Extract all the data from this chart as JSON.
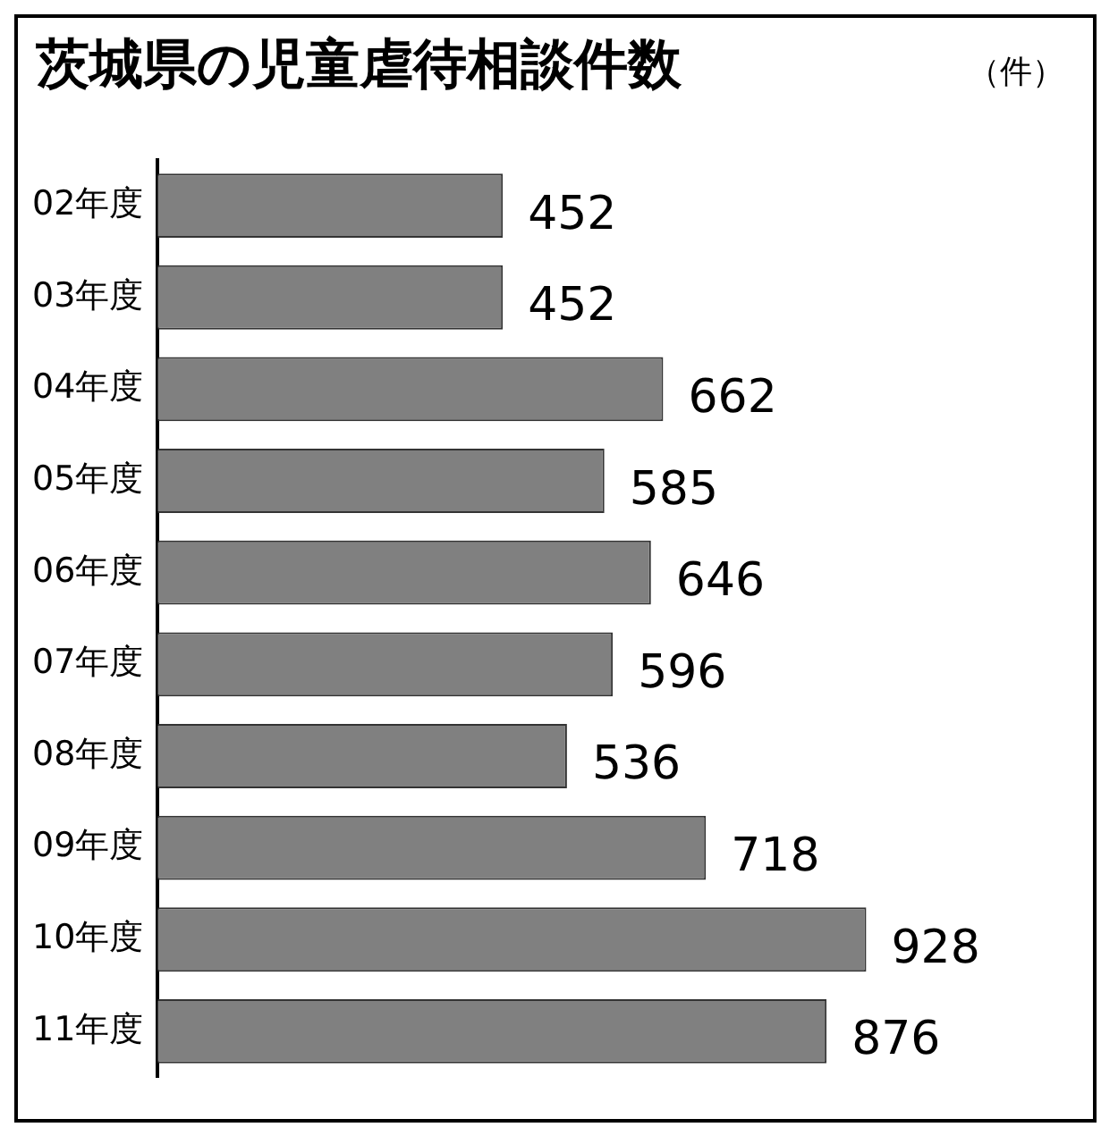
{
  "chart_data": {
    "type": "bar",
    "orientation": "horizontal",
    "title": "茨城県の児童虐待相談件数",
    "annotations": [
      "（件）"
    ],
    "categories": [
      "02年度",
      "03年度",
      "04年度",
      "05年度",
      "06年度",
      "07年度",
      "08年度",
      "09年度",
      "10年度",
      "11年度"
    ],
    "values": [
      452,
      452,
      662,
      585,
      646,
      596,
      536,
      718,
      928,
      876
    ],
    "color": "#808080",
    "tick_labels": "y",
    "data_labels": true,
    "grid": false,
    "legend": false
  }
}
